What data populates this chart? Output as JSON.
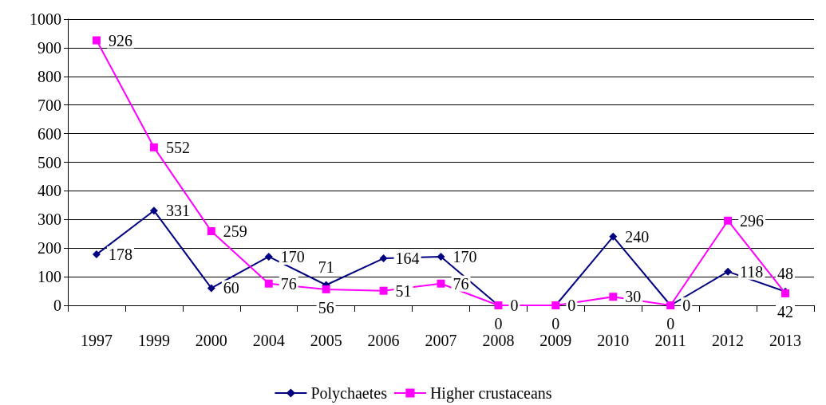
{
  "chart_data": {
    "type": "line",
    "categories": [
      "1997",
      "1999",
      "2000",
      "2004",
      "2005",
      "2006",
      "2007",
      "2008",
      "2009",
      "2010",
      "2011",
      "2012",
      "2013"
    ],
    "series": [
      {
        "name": "Polychaetes",
        "color": "#000080",
        "marker": "diamond",
        "values": [
          178,
          331,
          60,
          170,
          71,
          164,
          170,
          0,
          0,
          240,
          0,
          118,
          48
        ]
      },
      {
        "name": "Higher crustaceans",
        "color": "#ff00ff",
        "marker": "square",
        "values": [
          926,
          552,
          259,
          76,
          56,
          51,
          76,
          0,
          0,
          30,
          0,
          296,
          42
        ]
      }
    ],
    "ylim": [
      0,
      1000
    ],
    "yticks": [
      0,
      100,
      200,
      300,
      400,
      500,
      600,
      700,
      800,
      900,
      1000
    ],
    "grid": "y",
    "legend": "bottom",
    "data_labels": true,
    "line_style": "solid"
  }
}
